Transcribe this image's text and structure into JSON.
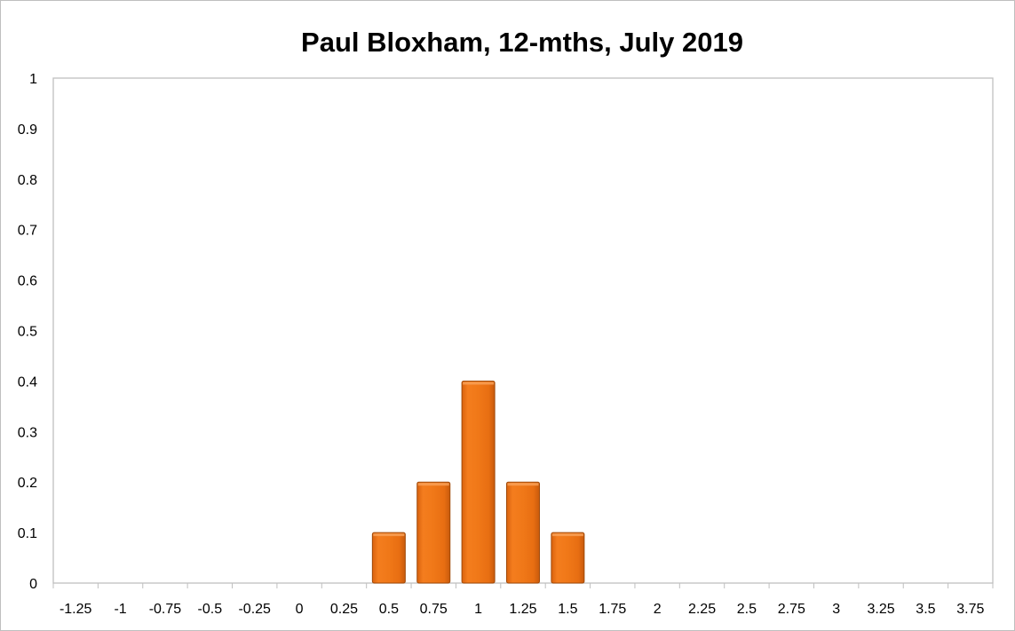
{
  "chart_data": {
    "type": "bar",
    "title": "Paul Bloxham, 12-mths, July 2019",
    "xlabel": "",
    "ylabel": "",
    "categories": [
      "-1.25",
      "-1",
      "-0.75",
      "-0.5",
      "-0.25",
      "0",
      "0.25",
      "0.5",
      "0.75",
      "1",
      "1.25",
      "1.5",
      "1.75",
      "2",
      "2.25",
      "2.5",
      "2.75",
      "3",
      "3.25",
      "3.5",
      "3.75"
    ],
    "values": [
      0,
      0,
      0,
      0,
      0,
      0,
      0,
      0.1,
      0.2,
      0.4,
      0.2,
      0.1,
      0,
      0,
      0,
      0,
      0,
      0,
      0,
      0,
      0
    ],
    "ylim": [
      0,
      1
    ],
    "yticks": [
      "0",
      "0.1",
      "0.2",
      "0.3",
      "0.4",
      "0.5",
      "0.6",
      "0.7",
      "0.8",
      "0.9",
      "1"
    ],
    "grid": false,
    "legend": "none",
    "bar_color": "#f07818",
    "bar_edge_color": "#a04a0a"
  }
}
